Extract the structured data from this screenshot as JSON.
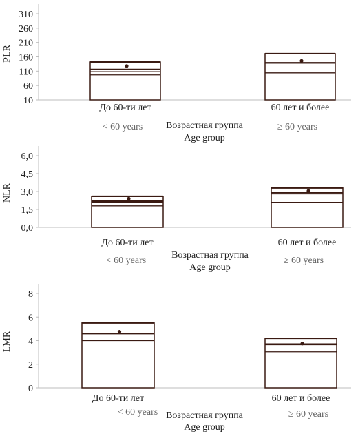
{
  "chart_data": [
    {
      "type": "box",
      "ylabel": "PLR",
      "ylim": [
        10,
        310
      ],
      "yticks": [
        "310",
        "260",
        "210",
        "160",
        "110",
        "60",
        "10"
      ],
      "ytick_values": [
        310,
        260,
        210,
        160,
        110,
        60,
        10
      ],
      "xlabel_ru": "Возрастная группа",
      "xlabel_en": "Age group",
      "categories": [
        {
          "ru": "До 60-ти лет",
          "en": "< 60 years"
        },
        {
          "ru": "60 лет и более",
          "en": "≥ 60 years"
        }
      ],
      "series": [
        {
          "q1": 97,
          "median": 108,
          "q3": 116,
          "upper": 142,
          "mean": 128
        },
        {
          "q1": 104,
          "median": 138,
          "q3": 139,
          "upper": 171,
          "mean": 146
        }
      ]
    },
    {
      "type": "box",
      "ylabel": "NLR",
      "ylim": [
        0,
        6
      ],
      "yticks": [
        "6,0",
        "4,5",
        "3,0",
        "1,5",
        "0,0"
      ],
      "ytick_values": [
        6.0,
        4.5,
        3.0,
        1.5,
        0.0
      ],
      "xlabel_ru": "Возрастная группа",
      "xlabel_en": "Age group",
      "categories": [
        {
          "ru": "До 60-ти лет",
          "en": "< 60 years"
        },
        {
          "ru": "60 лет и более",
          "en": "≥ 60 years"
        }
      ],
      "series": [
        {
          "q1": 1.8,
          "median": 2.1,
          "q3": 2.2,
          "upper": 2.6,
          "mean": 2.4
        },
        {
          "q1": 2.1,
          "median": 2.8,
          "q3": 2.9,
          "upper": 3.3,
          "mean": 3.05
        }
      ]
    },
    {
      "type": "box",
      "ylabel": "LMR",
      "ylim": [
        0,
        8
      ],
      "yticks": [
        "8",
        "6",
        "4",
        "2",
        "0"
      ],
      "ytick_values": [
        8,
        6,
        4,
        2,
        0
      ],
      "xlabel_ru": "Возрастная группа",
      "xlabel_en": "Age group",
      "categories": [
        {
          "ru": "До 60-ти лет",
          "en": "< 60 years"
        },
        {
          "ru": "60 лет и более",
          "en": "≥ 60 years"
        }
      ],
      "series": [
        {
          "q1": 4.0,
          "median": 4.6,
          "q3": 4.6,
          "upper": 5.5,
          "mean": 4.75
        },
        {
          "q1": 3.05,
          "median": 3.65,
          "q3": 3.7,
          "upper": 4.2,
          "mean": 3.75
        }
      ]
    }
  ]
}
